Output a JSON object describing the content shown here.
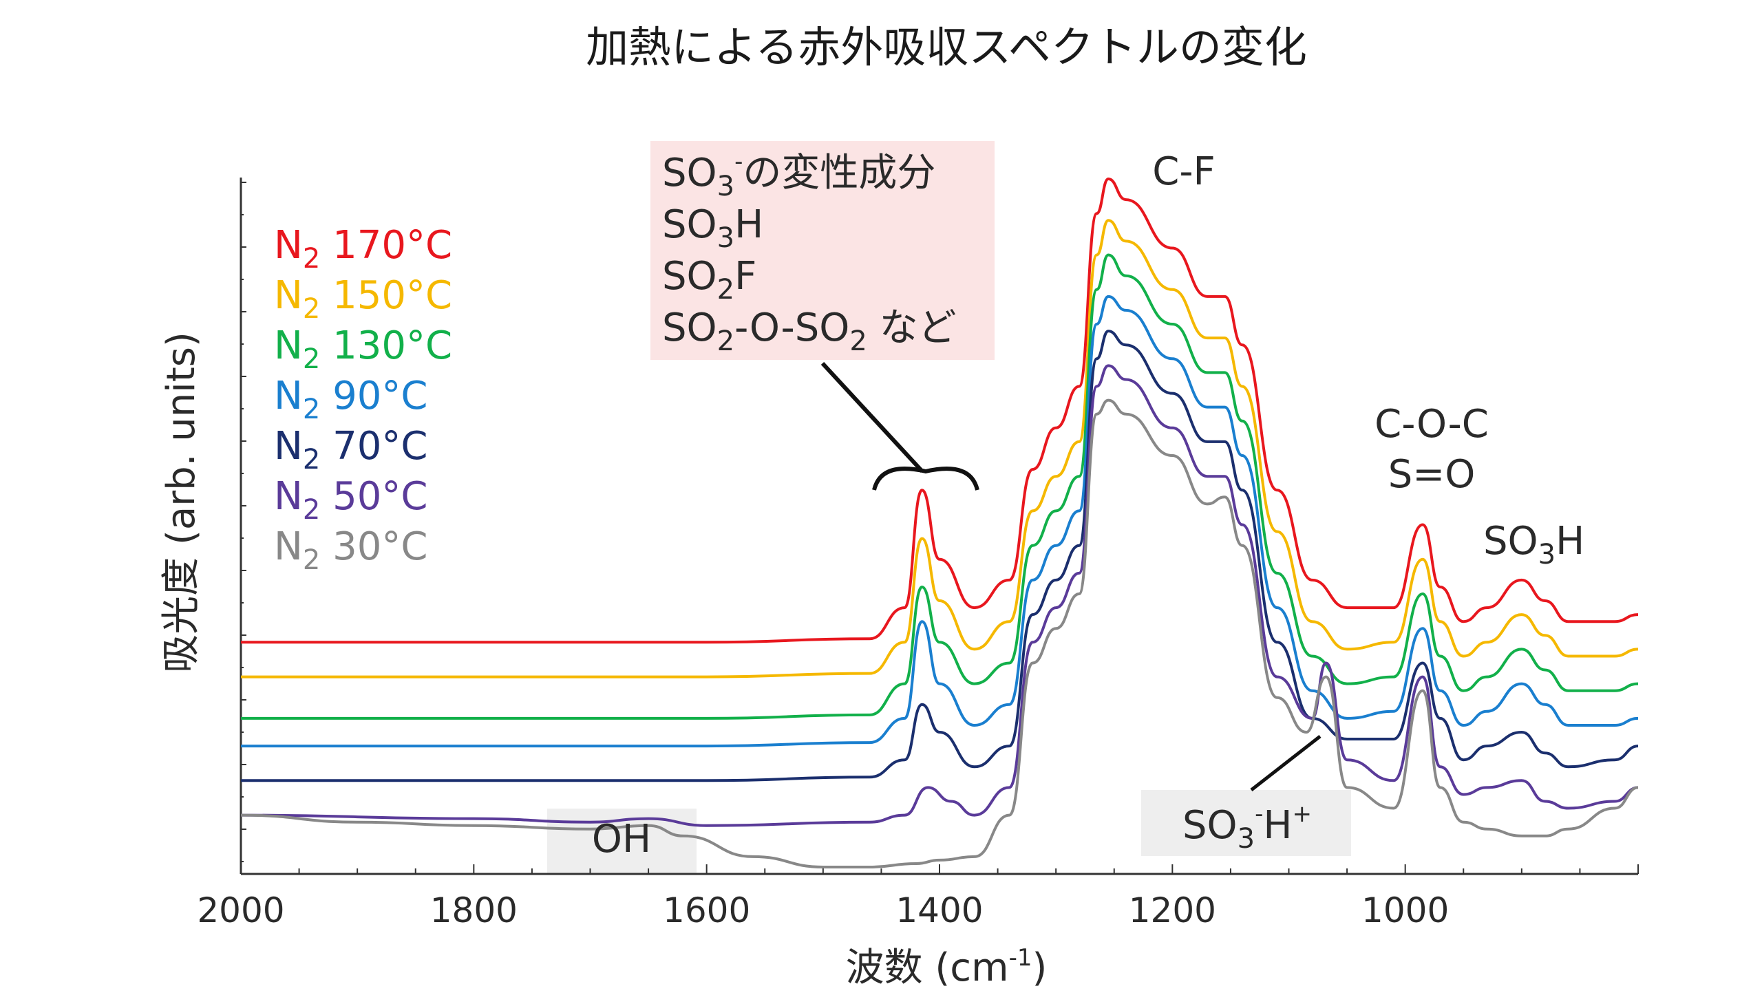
{
  "chart_data": {
    "type": "line",
    "title": "加熱による赤外吸収スペクトルの変化",
    "xlabel": "波数 (cm-1)",
    "ylabel": "吸光度 (arb. units)",
    "xlim": [
      2000,
      800
    ],
    "ylim": [
      0,
      1
    ],
    "x_ticks": [
      "2000",
      "1800",
      "1600",
      "1400",
      "1200",
      "1000"
    ],
    "series": [
      {
        "name": "N2 170°C",
        "color": "#e8171e",
        "values": [
          [
            2000,
            0.33
          ],
          [
            1800,
            0.33
          ],
          [
            1600,
            0.33
          ],
          [
            1460,
            0.335
          ],
          [
            1430,
            0.38
          ],
          [
            1415,
            0.55
          ],
          [
            1400,
            0.45
          ],
          [
            1370,
            0.38
          ],
          [
            1340,
            0.42
          ],
          [
            1320,
            0.58
          ],
          [
            1300,
            0.64
          ],
          [
            1280,
            0.7
          ],
          [
            1265,
            0.95
          ],
          [
            1255,
            1.0
          ],
          [
            1240,
            0.97
          ],
          [
            1200,
            0.9
          ],
          [
            1170,
            0.83
          ],
          [
            1155,
            0.83
          ],
          [
            1140,
            0.76
          ],
          [
            1110,
            0.55
          ],
          [
            1080,
            0.42
          ],
          [
            1050,
            0.38
          ],
          [
            1010,
            0.38
          ],
          [
            985,
            0.5
          ],
          [
            970,
            0.41
          ],
          [
            950,
            0.36
          ],
          [
            930,
            0.38
          ],
          [
            900,
            0.42
          ],
          [
            880,
            0.39
          ],
          [
            860,
            0.36
          ],
          [
            820,
            0.36
          ],
          [
            800,
            0.37
          ]
        ]
      },
      {
        "name": "N2 150°C",
        "color": "#f5b800",
        "values": [
          [
            2000,
            0.28
          ],
          [
            1800,
            0.28
          ],
          [
            1600,
            0.28
          ],
          [
            1460,
            0.285
          ],
          [
            1430,
            0.33
          ],
          [
            1415,
            0.48
          ],
          [
            1400,
            0.39
          ],
          [
            1370,
            0.32
          ],
          [
            1340,
            0.36
          ],
          [
            1320,
            0.52
          ],
          [
            1300,
            0.57
          ],
          [
            1280,
            0.62
          ],
          [
            1265,
            0.89
          ],
          [
            1255,
            0.94
          ],
          [
            1240,
            0.91
          ],
          [
            1200,
            0.84
          ],
          [
            1170,
            0.77
          ],
          [
            1155,
            0.77
          ],
          [
            1140,
            0.7
          ],
          [
            1110,
            0.49
          ],
          [
            1080,
            0.36
          ],
          [
            1050,
            0.32
          ],
          [
            1010,
            0.33
          ],
          [
            985,
            0.45
          ],
          [
            970,
            0.36
          ],
          [
            950,
            0.31
          ],
          [
            930,
            0.33
          ],
          [
            900,
            0.37
          ],
          [
            880,
            0.34
          ],
          [
            860,
            0.31
          ],
          [
            820,
            0.31
          ],
          [
            800,
            0.32
          ]
        ]
      },
      {
        "name": "N2 130°C",
        "color": "#12b04a",
        "values": [
          [
            2000,
            0.22
          ],
          [
            1800,
            0.22
          ],
          [
            1600,
            0.22
          ],
          [
            1460,
            0.225
          ],
          [
            1430,
            0.27
          ],
          [
            1415,
            0.41
          ],
          [
            1400,
            0.33
          ],
          [
            1370,
            0.27
          ],
          [
            1340,
            0.3
          ],
          [
            1320,
            0.47
          ],
          [
            1300,
            0.52
          ],
          [
            1280,
            0.57
          ],
          [
            1265,
            0.84
          ],
          [
            1255,
            0.89
          ],
          [
            1240,
            0.86
          ],
          [
            1200,
            0.79
          ],
          [
            1170,
            0.72
          ],
          [
            1155,
            0.72
          ],
          [
            1140,
            0.65
          ],
          [
            1110,
            0.43
          ],
          [
            1080,
            0.31
          ],
          [
            1050,
            0.27
          ],
          [
            1010,
            0.28
          ],
          [
            985,
            0.4
          ],
          [
            970,
            0.31
          ],
          [
            950,
            0.26
          ],
          [
            930,
            0.28
          ],
          [
            900,
            0.32
          ],
          [
            880,
            0.29
          ],
          [
            860,
            0.26
          ],
          [
            820,
            0.26
          ],
          [
            800,
            0.27
          ]
        ]
      },
      {
        "name": "N2 90°C",
        "color": "#1a7fcf",
        "values": [
          [
            2000,
            0.18
          ],
          [
            1800,
            0.18
          ],
          [
            1600,
            0.18
          ],
          [
            1460,
            0.185
          ],
          [
            1430,
            0.22
          ],
          [
            1415,
            0.36
          ],
          [
            1400,
            0.27
          ],
          [
            1370,
            0.21
          ],
          [
            1340,
            0.24
          ],
          [
            1320,
            0.42
          ],
          [
            1300,
            0.47
          ],
          [
            1280,
            0.52
          ],
          [
            1265,
            0.79
          ],
          [
            1255,
            0.83
          ],
          [
            1240,
            0.81
          ],
          [
            1200,
            0.74
          ],
          [
            1170,
            0.67
          ],
          [
            1155,
            0.67
          ],
          [
            1140,
            0.6
          ],
          [
            1110,
            0.38
          ],
          [
            1080,
            0.26
          ],
          [
            1050,
            0.22
          ],
          [
            1010,
            0.23
          ],
          [
            985,
            0.35
          ],
          [
            970,
            0.26
          ],
          [
            950,
            0.21
          ],
          [
            930,
            0.23
          ],
          [
            900,
            0.27
          ],
          [
            880,
            0.24
          ],
          [
            860,
            0.21
          ],
          [
            820,
            0.21
          ],
          [
            800,
            0.22
          ]
        ]
      },
      {
        "name": "N2 70°C",
        "color": "#1b2f6e",
        "values": [
          [
            2000,
            0.13
          ],
          [
            1800,
            0.13
          ],
          [
            1600,
            0.13
          ],
          [
            1460,
            0.135
          ],
          [
            1430,
            0.16
          ],
          [
            1415,
            0.24
          ],
          [
            1400,
            0.2
          ],
          [
            1370,
            0.15
          ],
          [
            1340,
            0.18
          ],
          [
            1320,
            0.37
          ],
          [
            1300,
            0.42
          ],
          [
            1280,
            0.47
          ],
          [
            1265,
            0.74
          ],
          [
            1255,
            0.78
          ],
          [
            1240,
            0.76
          ],
          [
            1200,
            0.69
          ],
          [
            1170,
            0.62
          ],
          [
            1155,
            0.62
          ],
          [
            1140,
            0.55
          ],
          [
            1110,
            0.33
          ],
          [
            1080,
            0.22
          ],
          [
            1050,
            0.19
          ],
          [
            1010,
            0.19
          ],
          [
            985,
            0.3
          ],
          [
            970,
            0.22
          ],
          [
            950,
            0.16
          ],
          [
            930,
            0.18
          ],
          [
            900,
            0.2
          ],
          [
            880,
            0.17
          ],
          [
            860,
            0.15
          ],
          [
            820,
            0.16
          ],
          [
            800,
            0.18
          ]
        ]
      },
      {
        "name": "N2 50°C",
        "color": "#5a3b99",
        "values": [
          [
            2000,
            0.08
          ],
          [
            1800,
            0.075
          ],
          [
            1700,
            0.07
          ],
          [
            1650,
            0.075
          ],
          [
            1600,
            0.065
          ],
          [
            1460,
            0.07
          ],
          [
            1430,
            0.08
          ],
          [
            1410,
            0.12
          ],
          [
            1390,
            0.1
          ],
          [
            1370,
            0.08
          ],
          [
            1340,
            0.12
          ],
          [
            1320,
            0.33
          ],
          [
            1300,
            0.38
          ],
          [
            1280,
            0.43
          ],
          [
            1265,
            0.7
          ],
          [
            1255,
            0.73
          ],
          [
            1240,
            0.71
          ],
          [
            1200,
            0.64
          ],
          [
            1170,
            0.57
          ],
          [
            1155,
            0.57
          ],
          [
            1140,
            0.5
          ],
          [
            1110,
            0.28
          ],
          [
            1080,
            0.22
          ],
          [
            1068,
            0.3
          ],
          [
            1050,
            0.16
          ],
          [
            1010,
            0.13
          ],
          [
            985,
            0.28
          ],
          [
            970,
            0.15
          ],
          [
            950,
            0.11
          ],
          [
            930,
            0.12
          ],
          [
            900,
            0.13
          ],
          [
            880,
            0.1
          ],
          [
            860,
            0.09
          ],
          [
            820,
            0.1
          ],
          [
            800,
            0.12
          ]
        ]
      },
      {
        "name": "N2 30°C",
        "color": "#888888",
        "values": [
          [
            2000,
            0.08
          ],
          [
            1900,
            0.07
          ],
          [
            1800,
            0.065
          ],
          [
            1700,
            0.06
          ],
          [
            1650,
            0.065
          ],
          [
            1620,
            0.05
          ],
          [
            1560,
            0.02
          ],
          [
            1500,
            0.005
          ],
          [
            1460,
            0.005
          ],
          [
            1420,
            0.01
          ],
          [
            1400,
            0.015
          ],
          [
            1370,
            0.02
          ],
          [
            1340,
            0.08
          ],
          [
            1320,
            0.3
          ],
          [
            1300,
            0.35
          ],
          [
            1280,
            0.4
          ],
          [
            1265,
            0.66
          ],
          [
            1255,
            0.68
          ],
          [
            1240,
            0.66
          ],
          [
            1200,
            0.6
          ],
          [
            1170,
            0.53
          ],
          [
            1155,
            0.54
          ],
          [
            1140,
            0.47
          ],
          [
            1110,
            0.25
          ],
          [
            1085,
            0.2
          ],
          [
            1068,
            0.28
          ],
          [
            1050,
            0.12
          ],
          [
            1010,
            0.09
          ],
          [
            985,
            0.26
          ],
          [
            970,
            0.12
          ],
          [
            950,
            0.07
          ],
          [
            930,
            0.06
          ],
          [
            900,
            0.05
          ],
          [
            880,
            0.05
          ],
          [
            860,
            0.06
          ],
          [
            820,
            0.09
          ],
          [
            800,
            0.12
          ]
        ]
      }
    ],
    "legend": {
      "placement": "top-left",
      "entries": [
        {
          "base": "N",
          "sub": "2",
          "rest": " 170°C",
          "color": "#e8171e"
        },
        {
          "base": "N",
          "sub": "2",
          "rest": " 150°C",
          "color": "#f5b800"
        },
        {
          "base": "N",
          "sub": "2",
          "rest": " 130°C",
          "color": "#12b04a"
        },
        {
          "base": "N",
          "sub": "2",
          "rest": " 90°C",
          "color": "#1a7fcf"
        },
        {
          "base": "N",
          "sub": "2",
          "rest": " 70°C",
          "color": "#1b2f6e"
        },
        {
          "base": "N",
          "sub": "2",
          "rest": " 50°C",
          "color": "#5a3b99"
        },
        {
          "base": "N",
          "sub": "2",
          "rest": " 30°C",
          "color": "#888888"
        }
      ]
    },
    "annotations": {
      "so3_box": {
        "line1": {
          "a": "SO",
          "sub": "3",
          "sup": "-",
          "b": "の変性成分"
        },
        "line2": {
          "a": "SO",
          "sub": "3",
          "b": "H"
        },
        "line3": {
          "a": "SO",
          "sub": "2",
          "b": "F"
        },
        "line4": {
          "a": "SO",
          "sub1": "2",
          "mid": "-O-SO",
          "sub2": "2",
          "b": " など"
        },
        "bg_color": "#fbe4e4"
      },
      "cf": "C-F",
      "coc": "C-O-C",
      "so": "S=O",
      "so3h_right": {
        "a": "SO",
        "sub": "3",
        "b": "H"
      },
      "so3h_plus": {
        "a": "SO",
        "sub": "3",
        "sup1": "-",
        "b": "H",
        "sup2": "+"
      },
      "oh": "OH",
      "gray_box_color": "#eeeeee"
    }
  }
}
